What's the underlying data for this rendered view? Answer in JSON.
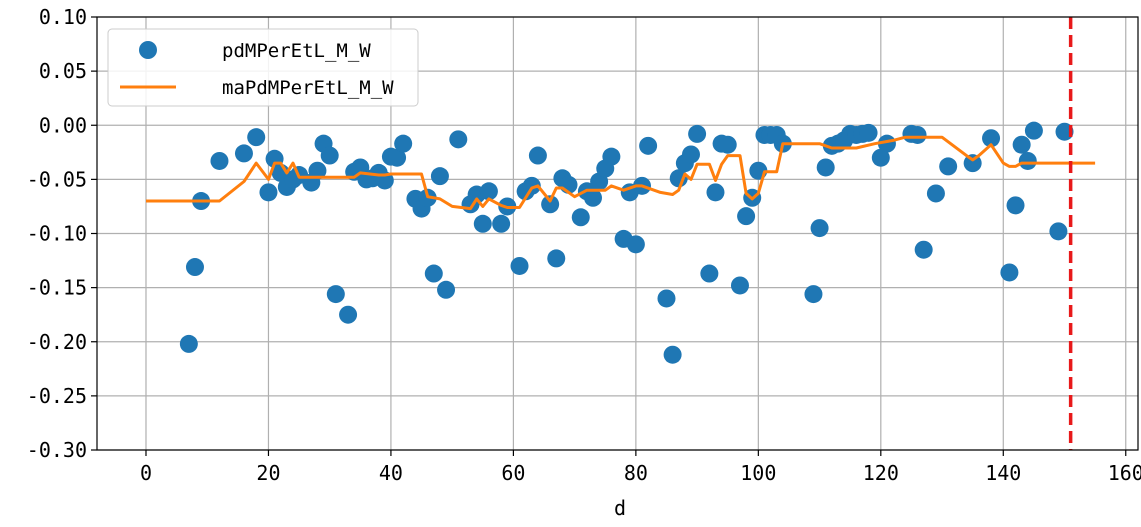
{
  "chart_data": {
    "type": "scatter",
    "title": "",
    "xlabel": "d",
    "ylabel": "",
    "xlim": [
      -8,
      162
    ],
    "ylim": [
      -0.3,
      0.1
    ],
    "x_ticks": [
      0,
      20,
      40,
      60,
      80,
      100,
      120,
      140,
      160
    ],
    "x_tick_labels": [
      "0",
      "20",
      "40",
      "60",
      "80",
      "100",
      "120",
      "140",
      "160"
    ],
    "y_ticks": [
      0.1,
      0.05,
      0.0,
      -0.05,
      -0.1,
      -0.15,
      -0.2,
      -0.25,
      -0.3
    ],
    "y_tick_labels": [
      "0.10",
      "0.05",
      "0.00",
      "-0.05",
      "-0.10",
      "-0.15",
      "-0.20",
      "-0.25",
      "-0.30"
    ],
    "grid": true,
    "legend_position": "top-left",
    "vline_x": 151,
    "colors": {
      "scatter": "#1f77b4",
      "line": "#ff7f0e",
      "vline": "#e8191a",
      "grid": "#b0b0b0"
    },
    "series": [
      {
        "name": "pdMPerEtL_M_W",
        "kind": "scatter",
        "points": [
          [
            7,
            -0.202
          ],
          [
            8,
            -0.131
          ],
          [
            9,
            -0.07
          ],
          [
            12,
            -0.033
          ],
          [
            16,
            -0.026
          ],
          [
            18,
            -0.011
          ],
          [
            20,
            -0.062
          ],
          [
            21,
            -0.031
          ],
          [
            22,
            -0.044
          ],
          [
            23,
            -0.057
          ],
          [
            24,
            -0.05
          ],
          [
            25,
            -0.046
          ],
          [
            27,
            -0.053
          ],
          [
            28,
            -0.042
          ],
          [
            29,
            -0.017
          ],
          [
            30,
            -0.028
          ],
          [
            31,
            -0.156
          ],
          [
            33,
            -0.175
          ],
          [
            34,
            -0.043
          ],
          [
            35,
            -0.039
          ],
          [
            36,
            -0.05
          ],
          [
            37,
            -0.049
          ],
          [
            38,
            -0.044
          ],
          [
            39,
            -0.051
          ],
          [
            40,
            -0.029
          ],
          [
            41,
            -0.03
          ],
          [
            42,
            -0.017
          ],
          [
            44,
            -0.068
          ],
          [
            45,
            -0.077
          ],
          [
            46,
            -0.067
          ],
          [
            47,
            -0.137
          ],
          [
            48,
            -0.047
          ],
          [
            49,
            -0.152
          ],
          [
            51,
            -0.013
          ],
          [
            53,
            -0.073
          ],
          [
            54,
            -0.064
          ],
          [
            55,
            -0.091
          ],
          [
            56,
            -0.061
          ],
          [
            58,
            -0.091
          ],
          [
            59,
            -0.075
          ],
          [
            61,
            -0.13
          ],
          [
            62,
            -0.061
          ],
          [
            63,
            -0.056
          ],
          [
            64,
            -0.028
          ],
          [
            66,
            -0.073
          ],
          [
            67,
            -0.123
          ],
          [
            68,
            -0.049
          ],
          [
            69,
            -0.055
          ],
          [
            71,
            -0.085
          ],
          [
            72,
            -0.061
          ],
          [
            73,
            -0.067
          ],
          [
            74,
            -0.052
          ],
          [
            75,
            -0.04
          ],
          [
            76,
            -0.029
          ],
          [
            78,
            -0.105
          ],
          [
            79,
            -0.062
          ],
          [
            80,
            -0.11
          ],
          [
            81,
            -0.056
          ],
          [
            82,
            -0.019
          ],
          [
            85,
            -0.16
          ],
          [
            86,
            -0.212
          ],
          [
            87,
            -0.049
          ],
          [
            88,
            -0.035
          ],
          [
            89,
            -0.027
          ],
          [
            90,
            -0.008
          ],
          [
            92,
            -0.137
          ],
          [
            93,
            -0.062
          ],
          [
            94,
            -0.017
          ],
          [
            95,
            -0.018
          ],
          [
            97,
            -0.148
          ],
          [
            98,
            -0.084
          ],
          [
            99,
            -0.067
          ],
          [
            100,
            -0.042
          ],
          [
            101,
            -0.009
          ],
          [
            102,
            -0.009
          ],
          [
            103,
            -0.009
          ],
          [
            104,
            -0.017
          ],
          [
            109,
            -0.156
          ],
          [
            110,
            -0.095
          ],
          [
            111,
            -0.039
          ],
          [
            112,
            -0.019
          ],
          [
            113,
            -0.017
          ],
          [
            114,
            -0.014
          ],
          [
            115,
            -0.008
          ],
          [
            116,
            -0.009
          ],
          [
            117,
            -0.008
          ],
          [
            118,
            -0.007
          ],
          [
            120,
            -0.03
          ],
          [
            121,
            -0.017
          ],
          [
            125,
            -0.008
          ],
          [
            126,
            -0.009
          ],
          [
            127,
            -0.115
          ],
          [
            129,
            -0.063
          ],
          [
            131,
            -0.038
          ],
          [
            135,
            -0.035
          ],
          [
            138,
            -0.012
          ],
          [
            141,
            -0.136
          ],
          [
            142,
            -0.074
          ],
          [
            143,
            -0.018
          ],
          [
            144,
            -0.033
          ],
          [
            145,
            -0.005
          ],
          [
            149,
            -0.098
          ],
          [
            150,
            -0.006
          ]
        ]
      },
      {
        "name": "maPdMPerEtL_M_W",
        "kind": "line",
        "points": [
          [
            0,
            -0.07
          ],
          [
            12,
            -0.07
          ],
          [
            16,
            -0.052
          ],
          [
            18,
            -0.035
          ],
          [
            20,
            -0.05
          ],
          [
            21,
            -0.035
          ],
          [
            22,
            -0.035
          ],
          [
            23,
            -0.044
          ],
          [
            24,
            -0.035
          ],
          [
            25,
            -0.048
          ],
          [
            34,
            -0.048
          ],
          [
            35,
            -0.044
          ],
          [
            38,
            -0.046
          ],
          [
            39,
            -0.046
          ],
          [
            40,
            -0.045
          ],
          [
            45,
            -0.045
          ],
          [
            46,
            -0.066
          ],
          [
            48,
            -0.068
          ],
          [
            50,
            -0.075
          ],
          [
            53,
            -0.077
          ],
          [
            54,
            -0.068
          ],
          [
            55,
            -0.075
          ],
          [
            56,
            -0.068
          ],
          [
            58,
            -0.074
          ],
          [
            59,
            -0.076
          ],
          [
            61,
            -0.076
          ],
          [
            63,
            -0.058
          ],
          [
            64,
            -0.056
          ],
          [
            66,
            -0.07
          ],
          [
            67,
            -0.058
          ],
          [
            68,
            -0.058
          ],
          [
            70,
            -0.066
          ],
          [
            72,
            -0.06
          ],
          [
            74,
            -0.06
          ],
          [
            75,
            -0.06
          ],
          [
            76,
            -0.056
          ],
          [
            78,
            -0.06
          ],
          [
            80,
            -0.056
          ],
          [
            81,
            -0.056
          ],
          [
            84,
            -0.062
          ],
          [
            86,
            -0.064
          ],
          [
            87,
            -0.06
          ],
          [
            88,
            -0.045
          ],
          [
            89,
            -0.05
          ],
          [
            90,
            -0.036
          ],
          [
            92,
            -0.036
          ],
          [
            93,
            -0.051
          ],
          [
            94,
            -0.036
          ],
          [
            95,
            -0.028
          ],
          [
            96,
            -0.028
          ],
          [
            97,
            -0.028
          ],
          [
            98,
            -0.063
          ],
          [
            99,
            -0.068
          ],
          [
            100,
            -0.063
          ],
          [
            101,
            -0.043
          ],
          [
            103,
            -0.043
          ],
          [
            104,
            -0.017
          ],
          [
            110,
            -0.017
          ],
          [
            112,
            -0.021
          ],
          [
            116,
            -0.021
          ],
          [
            119,
            -0.017
          ],
          [
            122,
            -0.014
          ],
          [
            124,
            -0.011
          ],
          [
            130,
            -0.011
          ],
          [
            134,
            -0.028
          ],
          [
            135,
            -0.032
          ],
          [
            136,
            -0.028
          ],
          [
            138,
            -0.018
          ],
          [
            140,
            -0.035
          ],
          [
            141,
            -0.038
          ],
          [
            142,
            -0.038
          ],
          [
            143,
            -0.035
          ],
          [
            155,
            -0.035
          ]
        ]
      }
    ]
  }
}
